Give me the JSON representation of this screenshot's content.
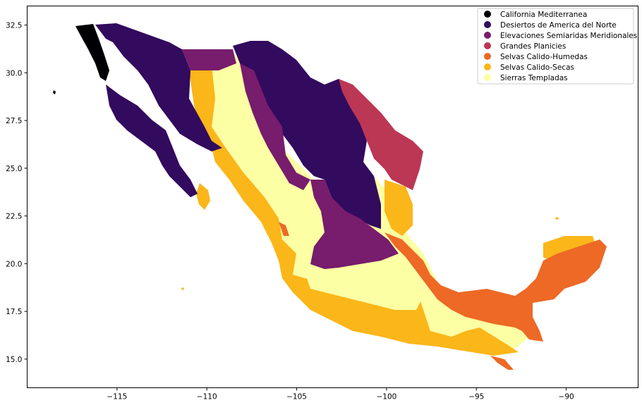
{
  "chart_data": {
    "type": "map",
    "title": "",
    "xlabel": "",
    "ylabel": "",
    "xlim": [
      -120,
      -86
    ],
    "ylim": [
      13.5,
      33.5
    ],
    "x_ticks": [
      -115,
      -110,
      -105,
      -100,
      -95,
      -90
    ],
    "x_tick_labels": [
      "−115",
      "−110",
      "−105",
      "−100",
      "−95",
      "−90"
    ],
    "y_ticks": [
      15.0,
      17.5,
      20.0,
      22.5,
      25.0,
      27.5,
      30.0,
      32.5
    ],
    "y_tick_labels": [
      "15.0",
      "17.5",
      "20.0",
      "22.5",
      "25.0",
      "27.5",
      "30.0",
      "32.5"
    ],
    "grid": false,
    "legend_position": "top-right",
    "legend": [
      {
        "label": "California Mediterranea",
        "color": "#000004"
      },
      {
        "label": "Desiertos de America del Norte",
        "color": "#320a5e"
      },
      {
        "label": "Elevaciones Semiaridas Meridionales",
        "color": "#781c6d"
      },
      {
        "label": "Grandes Planicies",
        "color": "#bb3754"
      },
      {
        "label": "Selvas Calido-Humedas",
        "color": "#ed6925"
      },
      {
        "label": "Selvas Calido-Secas",
        "color": "#fbb61a"
      },
      {
        "label": "Sierras Templadas",
        "color": "#fcffa4"
      }
    ]
  }
}
